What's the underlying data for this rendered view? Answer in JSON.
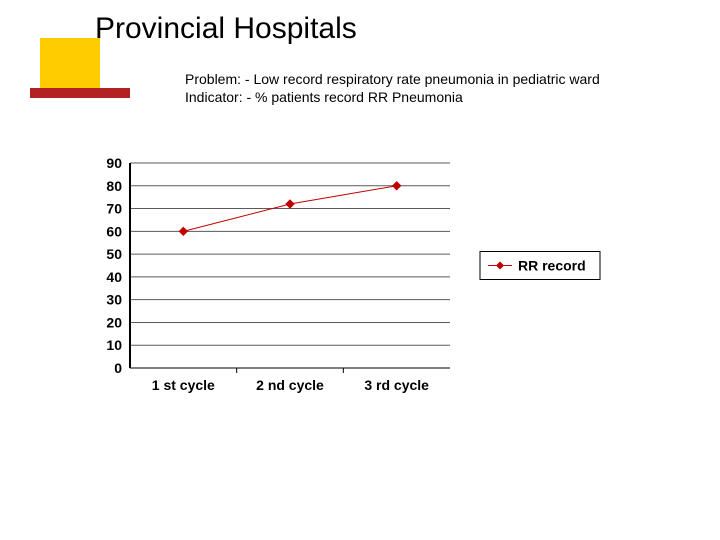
{
  "title": "Provincial Hospitals",
  "subtitle_problem": "Problem:  - Low record respiratory rate pneumonia in pediatric ward",
  "subtitle_indicator": "Indicator:  - % patients record RR Pneumonia",
  "chart": {
    "type": "line",
    "categories": [
      "1 st cycle",
      "2 nd cycle",
      "3 rd cycle"
    ],
    "series_name": "RR record",
    "values": [
      60,
      72,
      80
    ],
    "ylim": [
      0,
      90
    ],
    "ytick_step": 10,
    "yticks": [
      0,
      10,
      20,
      30,
      40,
      50,
      60,
      70,
      80,
      90
    ],
    "line_color": "#c00000",
    "marker_color": "#c00000",
    "marker_size": 4,
    "line_width": 1,
    "background_color": "#ffffff",
    "grid_color": "#5a5a5a",
    "axis_color": "#000000",
    "tick_fontsize": 14,
    "xtick_fontsize": 14,
    "legend_fontsize": 14,
    "legend_position": "right"
  },
  "deco": {
    "yellow": "#ffcc00",
    "red_bar": "#b22222"
  }
}
